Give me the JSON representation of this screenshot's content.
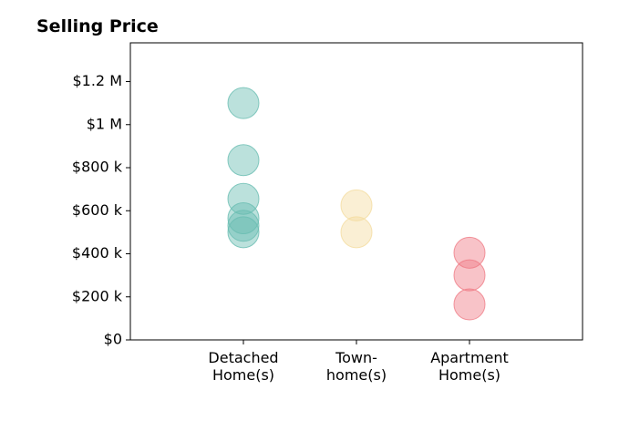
{
  "chart_data": {
    "type": "scatter",
    "title": "Selling Price",
    "xlabel": "",
    "ylabel": "",
    "categories": [
      "Detached\nHome(s)",
      "Town-\nhome(s)",
      "Apartment\nHome(s)"
    ],
    "xlim": [
      -1,
      3
    ],
    "ylim": [
      0,
      1380000
    ],
    "yticks": [
      0,
      200000,
      400000,
      600000,
      800000,
      1000000,
      1200000
    ],
    "ytick_labels": [
      "$0",
      "$200 k",
      "$400 k",
      "$600 k",
      "$800 k",
      "$1 M",
      "$1.2 M"
    ],
    "grid": false,
    "series": [
      {
        "category_index": 0,
        "color": "#69bdb2",
        "values": [
          1100000,
          835000,
          655000,
          565000,
          530000,
          500000
        ]
      },
      {
        "category_index": 1,
        "color": "#f4dc9f",
        "values": [
          625000,
          500000
        ]
      },
      {
        "category_index": 2,
        "color": "#ef7a85",
        "values": [
          405000,
          300000,
          165000
        ]
      }
    ]
  }
}
